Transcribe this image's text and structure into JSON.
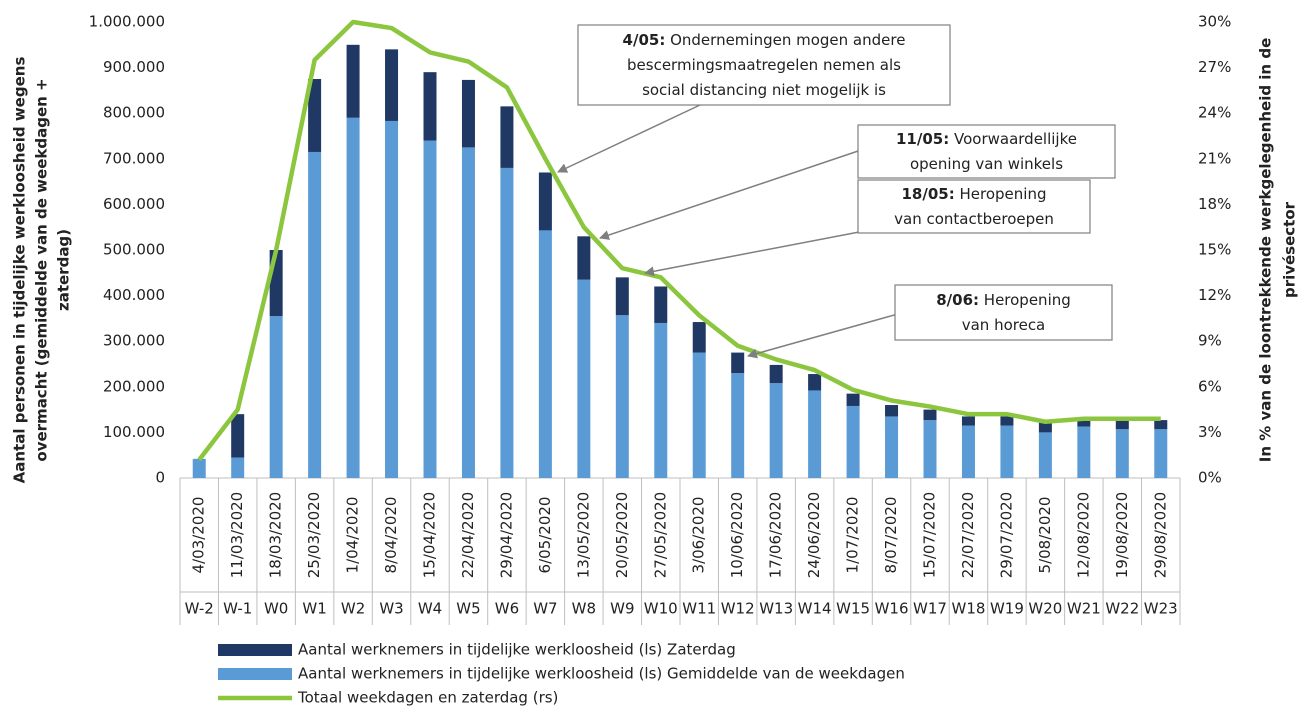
{
  "chart_data": {
    "type": "bar",
    "y_title_lines": [
      "Aantal personen in tijdelijke werkloosheid wegens",
      "overmacht  (gemiddelde van de weekdagen +",
      "zaterdag)"
    ],
    "y2_title_lines": [
      "In % van de loontrekkende werkgelegenheid in de",
      "privésector"
    ],
    "categories": [
      "4/03/2020",
      "11/03/2020",
      "18/03/2020",
      "25/03/2020",
      "1/04/2020",
      "8/04/2020",
      "15/04/2020",
      "22/04/2020",
      "29/04/2020",
      "6/05/2020",
      "13/05/2020",
      "20/05/2020",
      "27/05/2020",
      "3/06/2020",
      "10/06/2020",
      "17/06/2020",
      "24/06/2020",
      "1/07/2020",
      "8/07/2020",
      "15/07/2020",
      "22/07/2020",
      "29/07/2020",
      "5/08/2020",
      "12/08/2020",
      "19/08/2020",
      "29/08/2020"
    ],
    "weeks": [
      "W-2",
      "W-1",
      "W0",
      "W1",
      "W2",
      "W3",
      "W4",
      "W5",
      "W6",
      "W7",
      "W8",
      "W9",
      "W10",
      "W11",
      "W12",
      "W13",
      "W14",
      "W15",
      "W16",
      "W17",
      "W18",
      "W19",
      "W20",
      "W21",
      "W22",
      "W23"
    ],
    "series": [
      {
        "name": "Aantal werknemers in tijdelijke werkloosheid (ls) Zaterdag",
        "color": "#203864",
        "values": [
          0,
          95000,
          145000,
          160000,
          160000,
          157000,
          150000,
          148000,
          135000,
          127000,
          95000,
          83000,
          80000,
          67000,
          45000,
          40000,
          36000,
          27000,
          25000,
          23000,
          20000,
          20000,
          22000,
          17000,
          20000,
          20000
        ]
      },
      {
        "name": "Aantal werknemers in tijdelijke werkloosheid (ls) Gemiddelde van de weekdagen",
        "color": "#5b9bd5",
        "values": [
          42000,
          45000,
          355000,
          715000,
          790000,
          783000,
          740000,
          725000,
          680000,
          543000,
          435000,
          357000,
          340000,
          275000,
          230000,
          208000,
          192000,
          158000,
          135000,
          127000,
          115000,
          115000,
          100000,
          113000,
          107000,
          107000
        ]
      },
      {
        "name": "Totaal weekdagen en zaterdag (rs)",
        "color": "#8cc63f",
        "type": "line",
        "axis": "y2",
        "values": [
          1.2,
          4.5,
          15,
          27.5,
          30,
          29.6,
          28,
          27.4,
          25.7,
          21,
          16.5,
          13.8,
          13.2,
          10.7,
          8.7,
          7.8,
          7.1,
          5.8,
          5.1,
          4.7,
          4.2,
          4.2,
          3.7,
          3.9,
          3.9,
          3.9
        ]
      }
    ],
    "ylim": [
      0,
      1000000
    ],
    "yticks": [
      0,
      {
        "value": 100000,
        "label": "100.000"
      },
      {
        "value": 200000,
        "label": "200.000"
      },
      {
        "value": 300000,
        "label": "300.000"
      },
      {
        "value": 400000,
        "label": "400.000"
      },
      {
        "value": 500000,
        "label": "500.000"
      },
      {
        "value": 600000,
        "label": "600.000"
      },
      {
        "value": 700000,
        "label": "700.000"
      },
      {
        "value": 800000,
        "label": "800.000"
      },
      {
        "value": 900000,
        "label": "900.000"
      },
      {
        "value": 1000000,
        "label": "1.000.000"
      }
    ],
    "y2lim": [
      0,
      30
    ],
    "y2ticks": [
      {
        "value": 0,
        "label": "0%"
      },
      {
        "value": 3,
        "label": "3%"
      },
      {
        "value": 6,
        "label": "6%"
      },
      {
        "value": 9,
        "label": "9%"
      },
      {
        "value": 12,
        "label": "12%"
      },
      {
        "value": 15,
        "label": "15%"
      },
      {
        "value": 18,
        "label": "18%"
      },
      {
        "value": 21,
        "label": "21%"
      },
      {
        "value": 24,
        "label": "24%"
      },
      {
        "value": 27,
        "label": "27%"
      },
      {
        "value": 30,
        "label": "30%"
      }
    ],
    "annotations": [
      {
        "bold": "4/05:",
        "lines": [
          " Ondernemingen mogen andere",
          "bescermingsmaatregelen nemen als",
          "social distancing niet mogelijk is"
        ]
      },
      {
        "bold": "11/05:",
        "lines": [
          " Voorwaardellijke",
          "opening van winkels"
        ]
      },
      {
        "bold": "18/05:",
        "lines": [
          " Heropening",
          "van contactberoepen"
        ]
      },
      {
        "bold": "8/06:",
        "lines": [
          " Heropening",
          "van horeca"
        ]
      }
    ]
  }
}
